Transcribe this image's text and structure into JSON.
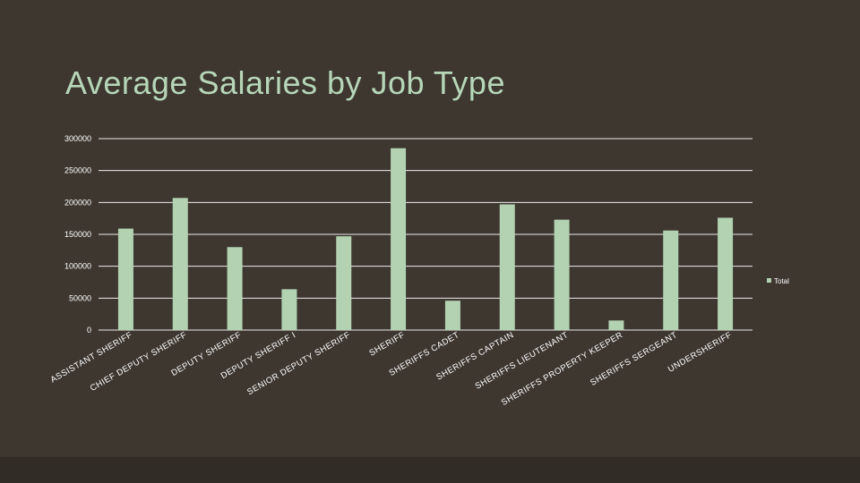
{
  "title": "Average Salaries by Job Type",
  "colors": {
    "background": "#3d3730",
    "bar": "#b3d2b2",
    "title": "#b7d6b8",
    "grid": "#ffffff"
  },
  "chart_data": {
    "type": "bar",
    "title": "Average Salaries by Job Type",
    "categories": [
      "ASSISTANT SHERIFF",
      "CHIEF DEPUTY SHERIFF",
      "DEPUTY SHERIFF",
      "DEPUTY SHERIFF I",
      "SENIOR DEPUTY SHERIFF",
      "SHERIFF",
      "SHERIFFS CADET",
      "SHERIFFS CAPTAIN",
      "SHERIFFS LIEUTENANT",
      "SHERIFFS PROPERTY KEEPER",
      "SHERIFFS SERGEANT",
      "UNDERSHERIFF"
    ],
    "series": [
      {
        "name": "Total",
        "values": [
          159000,
          207000,
          130000,
          64000,
          147000,
          285000,
          46000,
          197000,
          173000,
          15000,
          156000,
          176000
        ]
      }
    ],
    "yticks": [
      0,
      50000,
      100000,
      150000,
      200000,
      250000,
      300000
    ],
    "ylim": [
      0,
      300000
    ],
    "grid": true,
    "legend": "right"
  }
}
